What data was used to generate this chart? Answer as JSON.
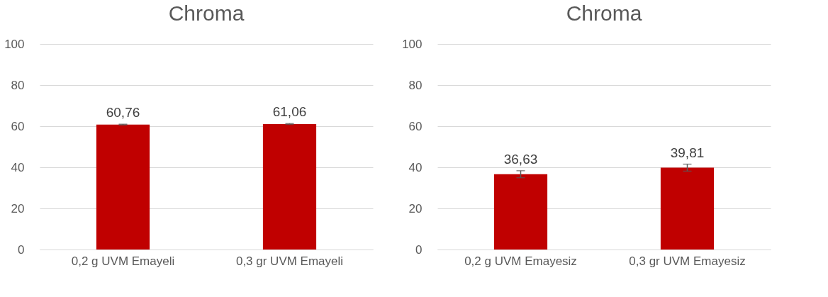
{
  "chart_data": [
    {
      "type": "bar",
      "title": "Chroma",
      "categories": [
        "0,2 g UVM Emayeli",
        "0,3 gr UVM Emayeli"
      ],
      "values": [
        60.76,
        61.06
      ],
      "errors": [
        0.2,
        0.2
      ],
      "value_labels": [
        "60,76",
        "61,06"
      ],
      "color": "#c00000",
      "ylim": [
        0,
        100
      ],
      "yticks": [
        0,
        20,
        40,
        60,
        80,
        100
      ],
      "grid": "y"
    },
    {
      "type": "bar",
      "title": "Chroma",
      "categories": [
        "0,2 g UVM Emayesiz",
        "0,3 gr UVM Emayesiz"
      ],
      "values": [
        36.63,
        39.81
      ],
      "errors": [
        1.7,
        1.7
      ],
      "value_labels": [
        "36,63",
        "39,81"
      ],
      "color": "#c00000",
      "ylim": [
        0,
        100
      ],
      "yticks": [
        0,
        20,
        40,
        60,
        80,
        100
      ],
      "grid": "y"
    }
  ]
}
